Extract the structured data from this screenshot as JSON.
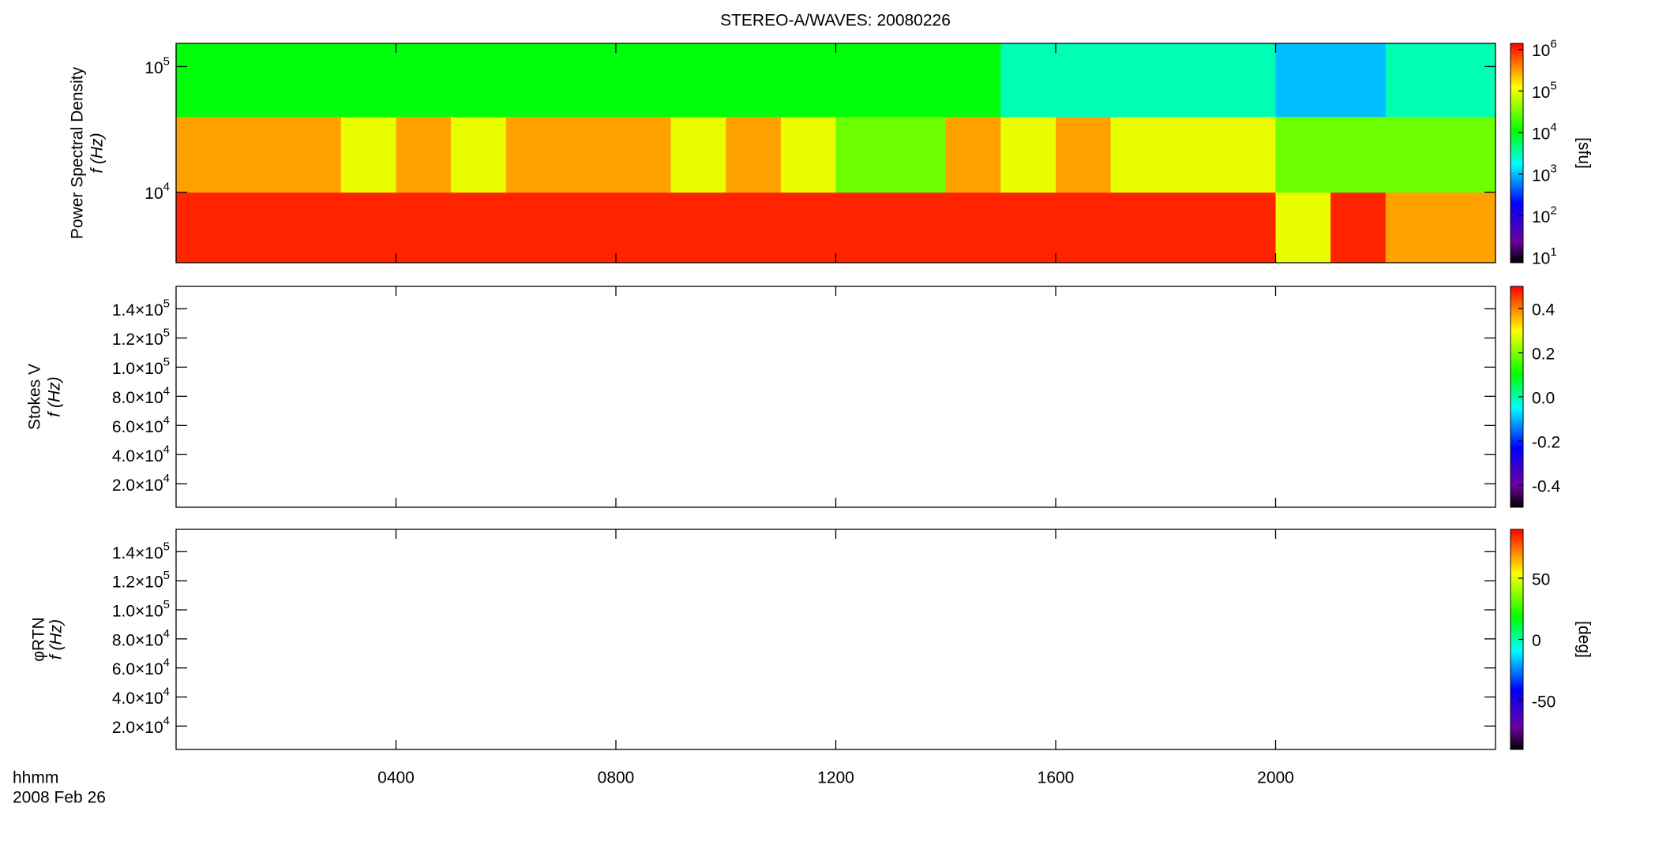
{
  "chart_data": [
    {
      "type": "heatmap",
      "title": "STEREO-A/WAVES: 20080226",
      "y_label": [
        "Power Spectral Density",
        "f (Hz)"
      ],
      "log": true,
      "ylim": [
        2750,
        153000
      ],
      "yticks": [
        {
          "value": 10000,
          "label": "10^4"
        },
        {
          "value": 100000,
          "label": "10^5"
        }
      ],
      "time_bins": [
        0,
        1,
        2,
        3,
        4,
        5,
        6,
        7,
        8,
        9,
        10,
        11,
        12,
        13,
        14,
        15,
        16,
        17,
        18,
        19,
        20,
        21,
        22,
        23,
        24
      ],
      "freq_bins": [
        2750,
        10000,
        40000,
        153000
      ],
      "z": [
        [
          1000000,
          1000000,
          1000000,
          1000000,
          1000000,
          1000000,
          1000000,
          1000000,
          1000000,
          1000000,
          1000000,
          1000000,
          1000000,
          1000000,
          1000000,
          1000000,
          1000000,
          1000000,
          1000000,
          1000000,
          100000,
          1000000,
          300000,
          300000
        ],
        [
          300000,
          300000,
          300000,
          100000,
          300000,
          100000,
          300000,
          300000,
          300000,
          100000,
          300000,
          100000,
          30000,
          30000,
          300000,
          100000,
          300000,
          100000,
          100000,
          100000,
          30000,
          30000,
          30000,
          30000
        ],
        [
          10000,
          10000,
          10000,
          10000,
          10000,
          10000,
          10000,
          10000,
          10000,
          10000,
          10000,
          10000,
          10000,
          10000,
          10000,
          3000,
          3000,
          3000,
          3000,
          3000,
          1000,
          1000,
          3000,
          3000
        ]
      ],
      "colorbar": {
        "label": "[sfu]",
        "log": true,
        "clim": [
          7.4,
          1400000
        ],
        "ticks": [
          {
            "value": 10,
            "label": "10^1"
          },
          {
            "value": 100,
            "label": "10^2"
          },
          {
            "value": 1000,
            "label": "10^3"
          },
          {
            "value": 10000,
            "label": "10^4"
          },
          {
            "value": 100000,
            "label": "10^5"
          },
          {
            "value": 1000000,
            "label": "10^6"
          }
        ]
      }
    },
    {
      "type": "heatmap",
      "y_label": [
        "Stokes V",
        "f (Hz)"
      ],
      "log": false,
      "ylim": [
        3900,
        155400
      ],
      "yticks": [
        {
          "value": 20000,
          "label": "2.0×10^4"
        },
        {
          "value": 40000,
          "label": "4.0×10^4"
        },
        {
          "value": 60000,
          "label": "6.0×10^4"
        },
        {
          "value": 80000,
          "label": "8.0×10^4"
        },
        {
          "value": 100000,
          "label": "1.0×10^5"
        },
        {
          "value": 120000,
          "label": "1.2×10^5"
        },
        {
          "value": 140000,
          "label": "1.4×10^5"
        }
      ],
      "colorbar": {
        "log": false,
        "clim": [
          -0.5,
          0.5
        ],
        "ticks": [
          -0.4,
          -0.2,
          {
            "value": 0,
            "label": "0.0"
          },
          0.2,
          0.4
        ]
      }
    },
    {
      "type": "heatmap",
      "y_label": [
        "φRTN",
        "f (Hz)"
      ],
      "log": false,
      "ylim": [
        3900,
        155400
      ],
      "yticks": [
        {
          "value": 20000,
          "label": "2.0×10^4"
        },
        {
          "value": 40000,
          "label": "4.0×10^4"
        },
        {
          "value": 60000,
          "label": "6.0×10^4"
        },
        {
          "value": 80000,
          "label": "8.0×10^4"
        },
        {
          "value": 100000,
          "label": "1.0×10^5"
        },
        {
          "value": 120000,
          "label": "1.2×10^5"
        },
        {
          "value": 140000,
          "label": "1.4×10^5"
        }
      ],
      "colorbar": {
        "label": "[deg]",
        "log": false,
        "clim": [
          -90,
          90
        ],
        "ticks": [
          -50,
          0,
          50
        ]
      },
      "xlim": [
        0,
        24
      ],
      "xticks": [
        {
          "value": 4,
          "label": "0400"
        },
        {
          "value": 8,
          "label": "0800"
        },
        {
          "value": 12,
          "label": "1200"
        },
        {
          "value": 16,
          "label": "1600"
        },
        {
          "value": 20,
          "label": "2000"
        }
      ],
      "x_label": "hhmm",
      "date": "2008 Feb 26"
    }
  ]
}
